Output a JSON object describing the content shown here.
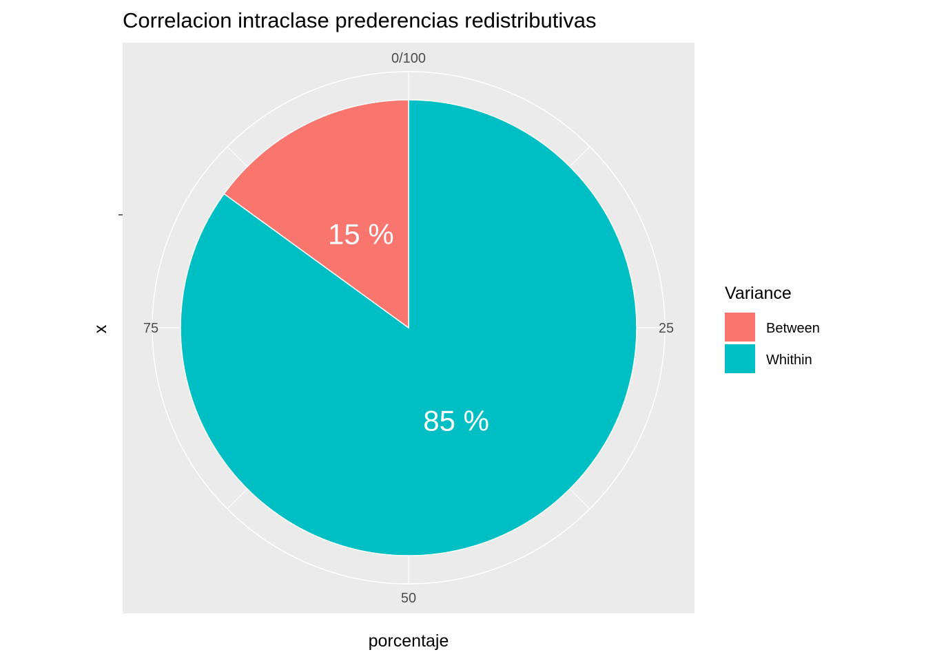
{
  "chart_data": {
    "type": "pie",
    "title": "Correlacion intraclase prederencias redistributivas",
    "xlabel": "porcentaje",
    "ylabel": "x",
    "theta_ticks": [
      {
        "value": 0,
        "label": "0/100"
      },
      {
        "value": 25,
        "label": "25"
      },
      {
        "value": 50,
        "label": "50"
      },
      {
        "value": 75,
        "label": "75"
      }
    ],
    "slices": [
      {
        "name": "Between",
        "value": 15,
        "label": "15 %",
        "color": "#F8766D"
      },
      {
        "name": "Whithin",
        "value": 85,
        "label": "85 %",
        "color": "#00BFC4"
      }
    ],
    "legend": {
      "title": "Variance",
      "position": "right"
    },
    "background_color": "#EBEBEB",
    "grid_color": "#FFFFFF",
    "grid": true
  }
}
